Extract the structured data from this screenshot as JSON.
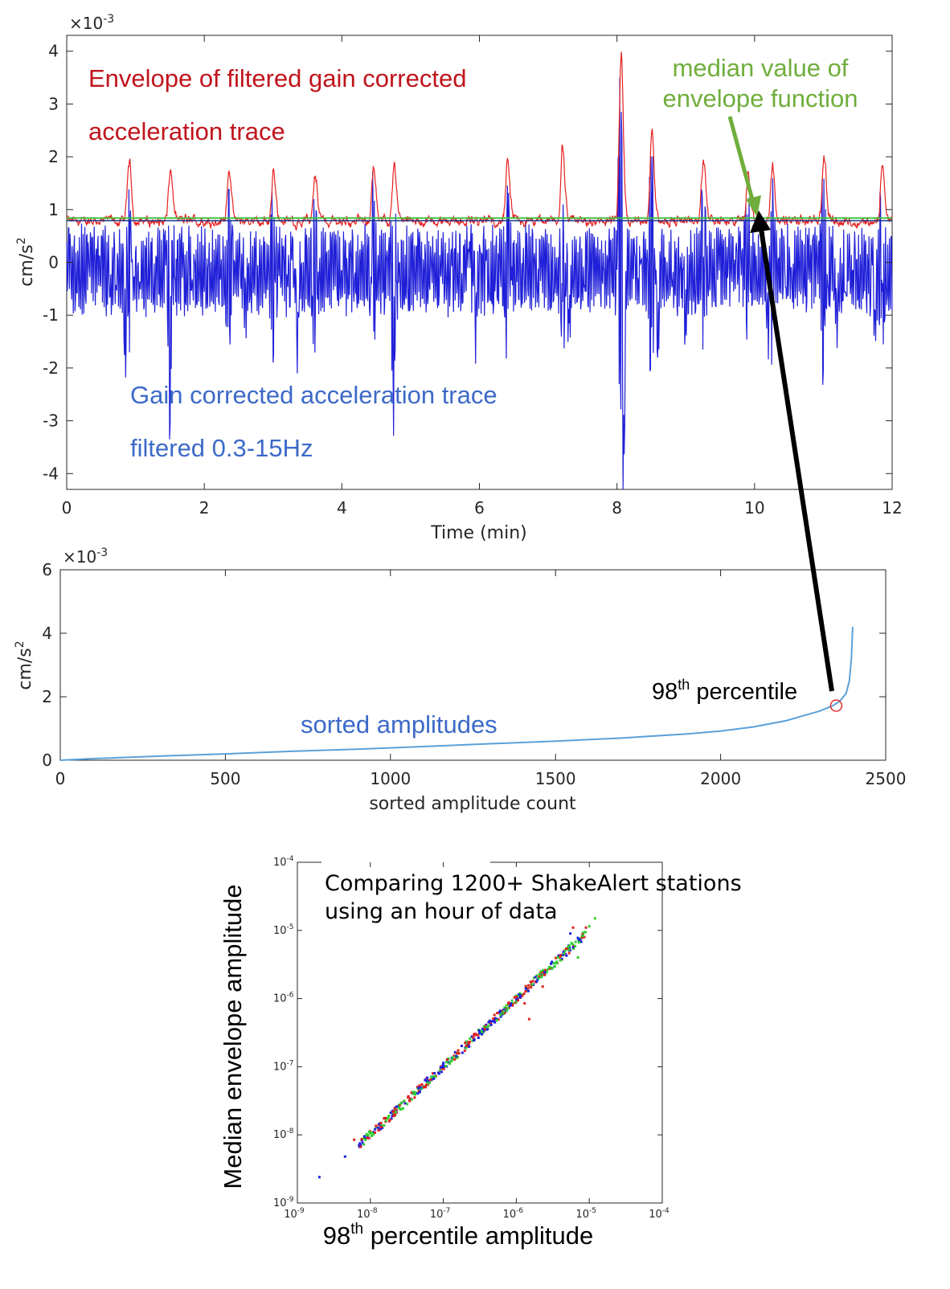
{
  "chart_data": [
    {
      "type": "line",
      "xlabel": "Time (min)",
      "ylabel": "cm/s",
      "ylabel_sup": "2",
      "multiplier": "×10",
      "multiplier_exp": "-3",
      "xlim": [
        0,
        12
      ],
      "ylim": [
        -4.3,
        4.3
      ],
      "xticks": [
        "0",
        "2",
        "4",
        "6",
        "8",
        "10",
        "12"
      ],
      "yticks": [
        "-4",
        "-3",
        "-2",
        "-1",
        "0",
        "1",
        "2",
        "3",
        "4"
      ],
      "annotations": {
        "envelope_line1": "Envelope of filtered gain corrected",
        "envelope_line2": "acceleration trace",
        "median_line1": "median value of",
        "median_line2": "envelope function",
        "trace_line1": "Gain corrected acceleration trace",
        "trace_line2": "filtered 0.3-15Hz"
      },
      "median_levels": {
        "green": 0.84,
        "blue": 0.79
      },
      "peaks": [
        {
          "t": 0.9,
          "v": 2.0
        },
        {
          "t": 1.5,
          "v": 1.9
        },
        {
          "t": 2.35,
          "v": 2.0
        },
        {
          "t": 3.0,
          "v": 1.9
        },
        {
          "t": 3.6,
          "v": 1.9
        },
        {
          "t": 4.45,
          "v": 2.0
        },
        {
          "t": 4.75,
          "v": 2.1
        },
        {
          "t": 6.4,
          "v": 2.0
        },
        {
          "t": 7.2,
          "v": 2.3
        },
        {
          "t": 8.05,
          "v": 4.3
        },
        {
          "t": 8.5,
          "v": 2.8
        },
        {
          "t": 9.25,
          "v": 2.1
        },
        {
          "t": 9.9,
          "v": 1.8
        },
        {
          "t": 10.25,
          "v": 2.0
        },
        {
          "t": 11.0,
          "v": 2.2
        },
        {
          "t": 11.85,
          "v": 2.0
        }
      ],
      "troughs": [
        {
          "t": 0.85,
          "v": -1.9
        },
        {
          "t": 1.5,
          "v": -1.6
        },
        {
          "t": 1.5,
          "v": -1.9
        },
        {
          "t": 2.6,
          "v": -1.6
        },
        {
          "t": 3.35,
          "v": -1.7
        },
        {
          "t": 4.75,
          "v": -1.9
        },
        {
          "t": 5.95,
          "v": -1.7
        },
        {
          "t": 7.3,
          "v": -1.8
        },
        {
          "t": 8.1,
          "v": -4.2
        },
        {
          "t": 8.6,
          "v": -1.9
        },
        {
          "t": 9.0,
          "v": -1.6
        },
        {
          "t": 10.2,
          "v": -1.8
        },
        {
          "t": 11.2,
          "v": -1.6
        },
        {
          "t": 11.75,
          "v": -1.7
        }
      ]
    },
    {
      "type": "line",
      "xlabel": "sorted amplitude count",
      "ylabel": "cm/s",
      "ylabel_sup": "2",
      "multiplier": "×10",
      "multiplier_exp": "-3",
      "xlim": [
        0,
        2500
      ],
      "ylim": [
        0,
        6
      ],
      "xticks": [
        "0",
        "500",
        "1000",
        "1500",
        "2000",
        "2500"
      ],
      "yticks": [
        "0",
        "2",
        "4",
        "6"
      ],
      "series": [
        {
          "name": "sorted amplitudes",
          "x": [
            0,
            100,
            300,
            500,
            700,
            900,
            1100,
            1300,
            1500,
            1700,
            1900,
            2000,
            2100,
            2200,
            2250,
            2300,
            2340,
            2360,
            2380,
            2390,
            2396,
            2400
          ],
          "y": [
            0.0,
            0.05,
            0.13,
            0.2,
            0.28,
            0.35,
            0.43,
            0.52,
            0.6,
            0.7,
            0.83,
            0.92,
            1.05,
            1.25,
            1.4,
            1.55,
            1.72,
            1.85,
            2.1,
            2.5,
            3.2,
            4.2
          ]
        }
      ],
      "marker": {
        "label_base": "98",
        "label_sup": "th",
        "label_rest": " percentile",
        "x": 2350,
        "y": 1.72
      }
    },
    {
      "type": "scatter",
      "title": "Comparing 1200+ ShakeAlert stations",
      "subtitle": "using an hour of data",
      "xlabel_base": "98",
      "xlabel_sup": "th",
      "xlabel_rest": " percentile amplitude",
      "ylabel": "Median envelope amplitude",
      "xscale": "log",
      "yscale": "log",
      "xlim": [
        1e-09,
        0.0001
      ],
      "ylim": [
        1e-09,
        0.0001
      ],
      "xticks": [
        {
          "base": "10",
          "exp": "-9"
        },
        {
          "base": "10",
          "exp": "-8"
        },
        {
          "base": "10",
          "exp": "-7"
        },
        {
          "base": "10",
          "exp": "-6"
        },
        {
          "base": "10",
          "exp": "-5"
        },
        {
          "base": "10",
          "exp": "-4"
        }
      ],
      "yticks": [
        {
          "base": "10",
          "exp": "-9"
        },
        {
          "base": "10",
          "exp": "-8"
        },
        {
          "base": "10",
          "exp": "-7"
        },
        {
          "base": "10",
          "exp": "-6"
        },
        {
          "base": "10",
          "exp": "-5"
        },
        {
          "base": "10",
          "exp": "-4"
        }
      ],
      "colors": [
        "#1f1fe0",
        "#e02020",
        "#30d030"
      ],
      "series": [
        {
          "x": [
            2e-09,
            4.5e-09,
            7e-09,
            1.1e-08,
            2e-08,
            3e-08,
            5e-08,
            7.5e-08,
            1.2e-07,
            2e-07,
            3.5e-07,
            5e-07,
            7e-07,
            1e-06,
            1.7e-06,
            5.5e-06
          ],
          "y": [
            2.4e-09,
            4.8e-09,
            7e-09,
            1.1e-08,
            1.9e-08,
            2.9e-08,
            4.8e-08,
            7.2e-08,
            1.15e-07,
            1.9e-07,
            3.2e-07,
            4.6e-07,
            6.5e-07,
            9.5e-07,
            1.6e-06,
            9e-06
          ]
        },
        {
          "x": [
            6e-09,
            1.3e-08,
            2.2e-08,
            3.5e-08,
            6e-08,
            9e-08,
            1.4e-07,
            2.2e-07,
            3e-07,
            6e-07,
            1.3e-06,
            1.5e-06,
            2.3e-06,
            6e-06,
            9e-06
          ],
          "y": [
            8.5e-09,
            1.4e-08,
            2.3e-08,
            3.4e-08,
            6.2e-08,
            8.8e-08,
            1.45e-07,
            2.1e-07,
            2.9e-07,
            6e-07,
            8.5e-07,
            5e-07,
            1.5e-06,
            1.1e-05,
            1.1e-05
          ]
        },
        {
          "x": [
            8e-09,
            1.2e-08,
            1.8e-08,
            2.5e-08,
            4e-08,
            6e-08,
            1e-07,
            1.6e-07,
            2.5e-07,
            4e-07,
            6.5e-07,
            9e-07,
            1.2e-06,
            1.6e-06,
            2e-06,
            2.6e-06,
            3.3e-06,
            4.2e-06,
            5e-06,
            6.5e-06,
            8e-06,
            1e-05,
            1.2e-05,
            7e-06
          ],
          "y": [
            8.8e-09,
            1.3e-08,
            1.9e-08,
            2.5e-08,
            4e-08,
            6e-08,
            1e-07,
            1.6e-07,
            2.4e-07,
            3.8e-07,
            6.3e-07,
            8.5e-07,
            1.15e-06,
            1.55e-06,
            2e-06,
            2.6e-06,
            3.3e-06,
            4.3e-06,
            5.3e-06,
            6.8e-06,
            8.5e-06,
            1.15e-05,
            1.5e-05,
            4e-06
          ]
        }
      ]
    }
  ]
}
